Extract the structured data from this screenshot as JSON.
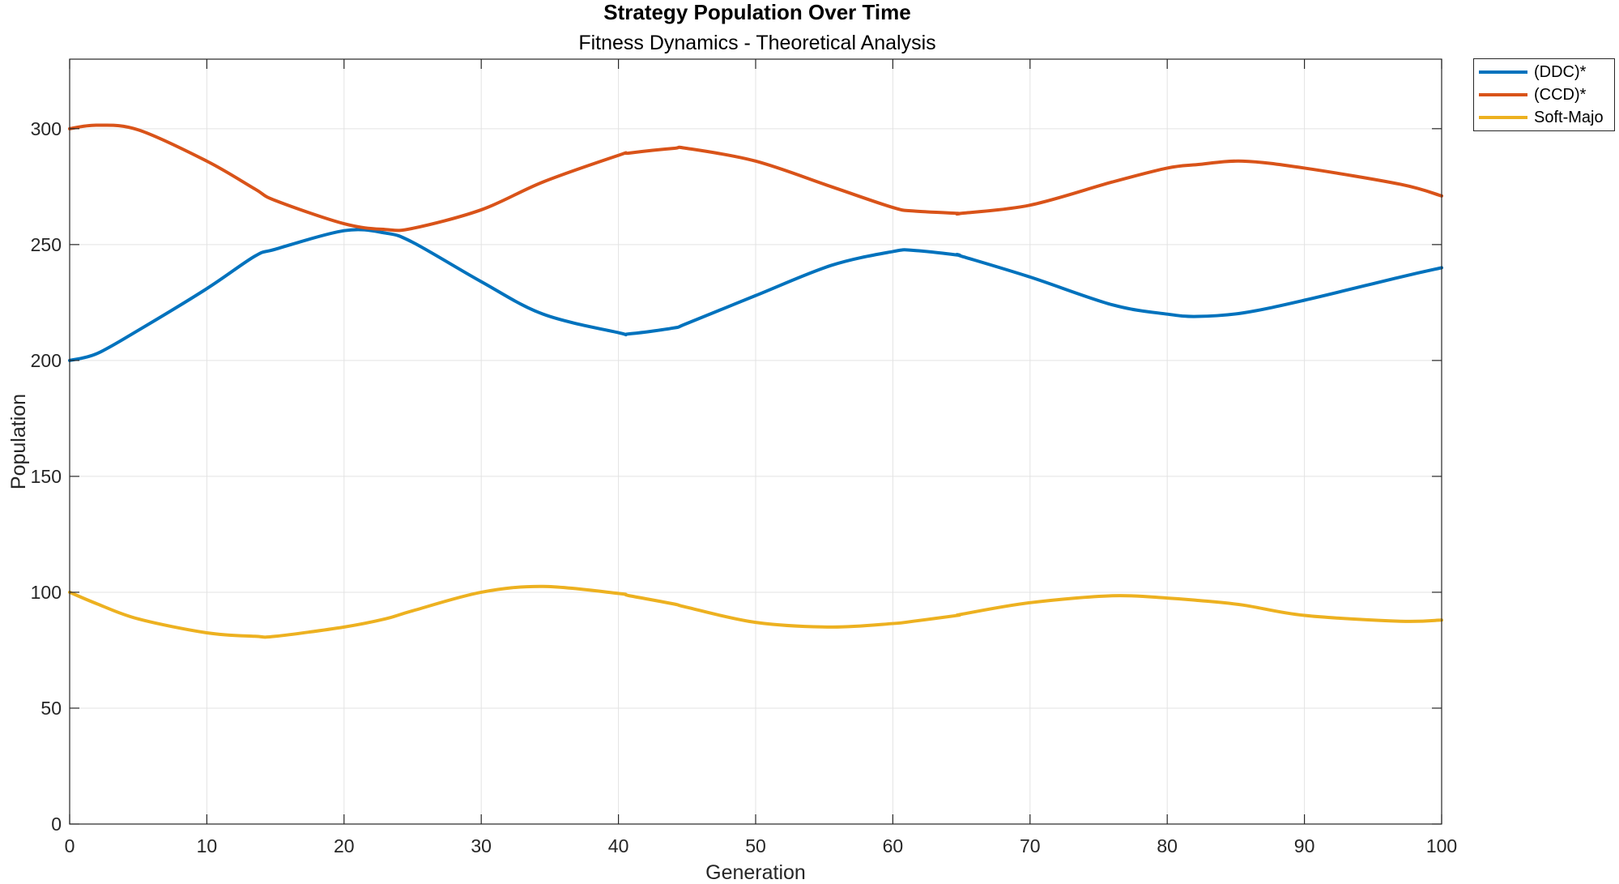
{
  "chart_data": {
    "type": "line",
    "title": "Strategy Population Over Time",
    "subtitle": "Fitness Dynamics - Theoretical Analysis",
    "xlabel": "Generation",
    "ylabel": "Population",
    "xlim": [
      0,
      100
    ],
    "ylim": [
      0,
      330
    ],
    "xticks": [
      0,
      10,
      20,
      30,
      40,
      50,
      60,
      70,
      80,
      90,
      100
    ],
    "yticks": [
      0,
      50,
      100,
      150,
      200,
      250,
      300
    ],
    "grid": true,
    "legend_position": "outside-top-right",
    "x": [
      0,
      2,
      5,
      10,
      13.5,
      15,
      20,
      23,
      25,
      30,
      34.5,
      40,
      40.8,
      44,
      45,
      50,
      55.5,
      60,
      61.5,
      64.7,
      65,
      70,
      76,
      80,
      82.2,
      85.5,
      90,
      97,
      100
    ],
    "series": [
      {
        "name": "(DDC)*",
        "color": "#0072BD",
        "values": [
          200,
          203,
          213,
          231,
          245,
          248,
          256,
          255,
          251,
          234,
          220,
          212,
          211.5,
          214,
          216,
          228,
          241,
          247,
          247.5,
          245.5,
          245,
          236,
          224,
          220,
          219,
          220.5,
          226,
          236,
          240
        ]
      },
      {
        "name": "(CCD)*",
        "color": "#D95319",
        "values": [
          300,
          301.5,
          299.5,
          286,
          274,
          269,
          259,
          256.5,
          257,
          265,
          277,
          288.5,
          289.5,
          291.5,
          291.5,
          286,
          275,
          266,
          264.5,
          263.5,
          263.5,
          267,
          277,
          283,
          284.5,
          286,
          283,
          276,
          271
        ]
      },
      {
        "name": "Soft-Majo",
        "color": "#EDB120",
        "values": [
          100,
          95,
          88.5,
          82.5,
          81,
          81,
          85,
          88.5,
          92,
          100,
          102.5,
          99.5,
          98.5,
          95,
          93.5,
          87,
          85,
          86.5,
          87.5,
          90,
          90.5,
          95.5,
          98.5,
          97.5,
          96.5,
          94.5,
          90,
          87.5,
          88
        ]
      }
    ]
  }
}
